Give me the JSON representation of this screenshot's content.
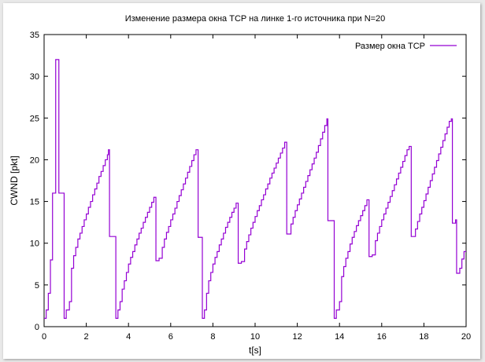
{
  "chart_data": {
    "type": "line",
    "title": "Изменение размера окна TCP на линке 1-го источника при N=20",
    "xlabel": "t[s]",
    "ylabel": "CWND [pkt]",
    "xlim": [
      0,
      20
    ],
    "ylim": [
      0,
      35
    ],
    "x_ticks": [
      0,
      2,
      4,
      6,
      8,
      10,
      12,
      14,
      16,
      18,
      20
    ],
    "y_ticks": [
      0,
      5,
      10,
      15,
      20,
      25,
      30,
      35
    ],
    "grid": false,
    "legend_position": "top-right",
    "series": [
      {
        "name": "Размер окна TCP",
        "color": "#9400d3",
        "step": true,
        "points": [
          [
            0.0,
            1
          ],
          [
            0.1,
            2
          ],
          [
            0.2,
            4
          ],
          [
            0.3,
            8
          ],
          [
            0.4,
            16
          ],
          [
            0.55,
            32
          ],
          [
            0.7,
            16
          ],
          [
            0.95,
            1
          ],
          [
            1.05,
            2
          ],
          [
            1.2,
            3
          ],
          [
            1.3,
            7
          ],
          [
            1.4,
            8.5
          ],
          [
            1.5,
            9.5
          ],
          [
            1.6,
            10.5
          ],
          [
            1.7,
            11.2
          ],
          [
            1.8,
            12
          ],
          [
            1.9,
            12.8
          ],
          [
            2.0,
            13.5
          ],
          [
            2.1,
            14.3
          ],
          [
            2.2,
            15
          ],
          [
            2.3,
            15.8
          ],
          [
            2.4,
            16.5
          ],
          [
            2.5,
            17.2
          ],
          [
            2.6,
            18
          ],
          [
            2.7,
            18.6
          ],
          [
            2.8,
            19.3
          ],
          [
            2.9,
            20
          ],
          [
            3.0,
            20.6
          ],
          [
            3.05,
            21.2
          ],
          [
            3.1,
            10.8
          ],
          [
            3.4,
            1
          ],
          [
            3.5,
            2
          ],
          [
            3.6,
            3
          ],
          [
            3.7,
            4.5
          ],
          [
            3.8,
            5.5
          ],
          [
            3.9,
            6.5
          ],
          [
            4.0,
            7.5
          ],
          [
            4.1,
            8.3
          ],
          [
            4.2,
            9
          ],
          [
            4.3,
            9.8
          ],
          [
            4.4,
            10.5
          ],
          [
            4.5,
            11.2
          ],
          [
            4.6,
            11.8
          ],
          [
            4.7,
            12.5
          ],
          [
            4.8,
            13.1
          ],
          [
            4.9,
            13.7
          ],
          [
            5.0,
            14.3
          ],
          [
            5.1,
            14.9
          ],
          [
            5.2,
            15.5
          ],
          [
            5.3,
            7.9
          ],
          [
            5.45,
            8.2
          ],
          [
            5.6,
            9.5
          ],
          [
            5.7,
            10.5
          ],
          [
            5.8,
            11.3
          ],
          [
            5.9,
            12
          ],
          [
            6.0,
            12.8
          ],
          [
            6.1,
            13.5
          ],
          [
            6.2,
            14.2
          ],
          [
            6.3,
            15
          ],
          [
            6.4,
            15.7
          ],
          [
            6.5,
            16.4
          ],
          [
            6.6,
            17.1
          ],
          [
            6.7,
            17.8
          ],
          [
            6.8,
            18.5
          ],
          [
            6.9,
            19.2
          ],
          [
            7.0,
            19.9
          ],
          [
            7.1,
            20.6
          ],
          [
            7.2,
            21.2
          ],
          [
            7.3,
            10.7
          ],
          [
            7.5,
            1
          ],
          [
            7.6,
            2
          ],
          [
            7.7,
            4
          ],
          [
            7.8,
            5.5
          ],
          [
            7.9,
            6.5
          ],
          [
            8.0,
            7.5
          ],
          [
            8.1,
            8.3
          ],
          [
            8.2,
            9
          ],
          [
            8.3,
            9.8
          ],
          [
            8.4,
            10.5
          ],
          [
            8.5,
            11.2
          ],
          [
            8.6,
            11.9
          ],
          [
            8.7,
            12.5
          ],
          [
            8.8,
            13.1
          ],
          [
            8.9,
            13.7
          ],
          [
            9.0,
            14.2
          ],
          [
            9.1,
            14.8
          ],
          [
            9.2,
            7.6
          ],
          [
            9.35,
            7.8
          ],
          [
            9.5,
            9.3
          ],
          [
            9.6,
            10.2
          ],
          [
            9.7,
            11
          ],
          [
            9.8,
            11.8
          ],
          [
            9.9,
            12.5
          ],
          [
            10.0,
            13.2
          ],
          [
            10.1,
            13.9
          ],
          [
            10.2,
            14.5
          ],
          [
            10.3,
            15.2
          ],
          [
            10.4,
            15.8
          ],
          [
            10.5,
            16.5
          ],
          [
            10.6,
            17.1
          ],
          [
            10.7,
            17.8
          ],
          [
            10.8,
            18.4
          ],
          [
            10.9,
            19
          ],
          [
            11.0,
            19.6
          ],
          [
            11.1,
            20.2
          ],
          [
            11.2,
            20.8
          ],
          [
            11.3,
            21.4
          ],
          [
            11.4,
            22.1
          ],
          [
            11.5,
            11.1
          ],
          [
            11.7,
            12.3
          ],
          [
            11.8,
            13.1
          ],
          [
            11.9,
            13.9
          ],
          [
            12.0,
            14.6
          ],
          [
            12.1,
            15.3
          ],
          [
            12.2,
            16
          ],
          [
            12.3,
            16.7
          ],
          [
            12.4,
            17.4
          ],
          [
            12.5,
            18.1
          ],
          [
            12.6,
            18.8
          ],
          [
            12.7,
            19.5
          ],
          [
            12.8,
            20.2
          ],
          [
            12.9,
            20.9
          ],
          [
            13.0,
            21.7
          ],
          [
            13.1,
            22.5
          ],
          [
            13.2,
            23.3
          ],
          [
            13.3,
            24.1
          ],
          [
            13.4,
            24.9
          ],
          [
            13.45,
            12.7
          ],
          [
            13.75,
            1
          ],
          [
            13.85,
            2
          ],
          [
            14.0,
            3
          ],
          [
            14.1,
            6
          ],
          [
            14.2,
            7.2
          ],
          [
            14.3,
            8.2
          ],
          [
            14.4,
            9
          ],
          [
            14.5,
            9.9
          ],
          [
            14.6,
            10.7
          ],
          [
            14.7,
            11.4
          ],
          [
            14.8,
            12.1
          ],
          [
            14.9,
            12.7
          ],
          [
            15.0,
            13.3
          ],
          [
            15.1,
            13.9
          ],
          [
            15.2,
            14.5
          ],
          [
            15.3,
            15.2
          ],
          [
            15.4,
            8.4
          ],
          [
            15.55,
            8.6
          ],
          [
            15.7,
            10.3
          ],
          [
            15.8,
            11.2
          ],
          [
            15.9,
            12
          ],
          [
            16.0,
            12.8
          ],
          [
            16.1,
            13.5
          ],
          [
            16.2,
            14.2
          ],
          [
            16.3,
            14.9
          ],
          [
            16.4,
            15.6
          ],
          [
            16.5,
            16.3
          ],
          [
            16.6,
            17
          ],
          [
            16.7,
            17.7
          ],
          [
            16.8,
            18.4
          ],
          [
            16.9,
            19.1
          ],
          [
            17.0,
            19.8
          ],
          [
            17.1,
            20.5
          ],
          [
            17.2,
            21.2
          ],
          [
            17.3,
            21.6
          ],
          [
            17.4,
            10.8
          ],
          [
            17.6,
            11.7
          ],
          [
            17.7,
            12.6
          ],
          [
            17.8,
            13.5
          ],
          [
            17.9,
            14.3
          ],
          [
            18.0,
            15.1
          ],
          [
            18.1,
            15.9
          ],
          [
            18.2,
            16.7
          ],
          [
            18.3,
            17.5
          ],
          [
            18.4,
            18.3
          ],
          [
            18.5,
            19.1
          ],
          [
            18.6,
            19.9
          ],
          [
            18.7,
            20.7
          ],
          [
            18.8,
            21.5
          ],
          [
            18.9,
            22.3
          ],
          [
            19.0,
            23.1
          ],
          [
            19.1,
            23.9
          ],
          [
            19.2,
            24.6
          ],
          [
            19.3,
            24.9
          ],
          [
            19.35,
            12.4
          ],
          [
            19.5,
            12.8
          ],
          [
            19.55,
            6.4
          ],
          [
            19.7,
            7
          ],
          [
            19.8,
            8.1
          ],
          [
            19.9,
            9
          ],
          [
            20.0,
            9
          ]
        ]
      }
    ]
  }
}
